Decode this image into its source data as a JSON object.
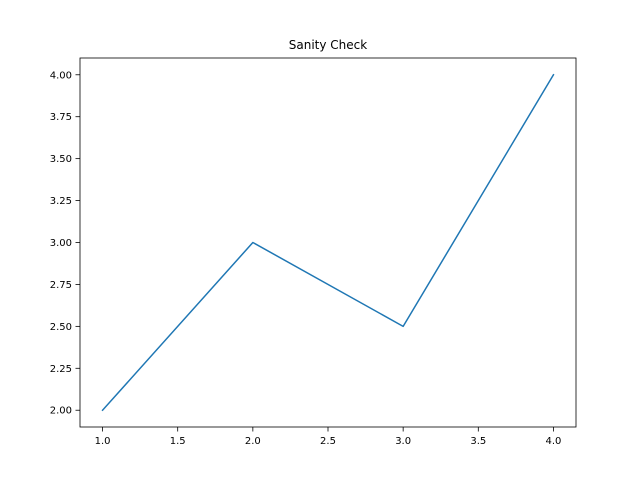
{
  "chart_data": {
    "type": "line",
    "title": "Sanity Check",
    "xlabel": "",
    "ylabel": "",
    "xlim": [
      0.85,
      4.15
    ],
    "ylim": [
      1.9,
      4.1
    ],
    "x_ticks": [
      1.0,
      1.5,
      2.0,
      2.5,
      3.0,
      3.5,
      4.0
    ],
    "y_ticks": [
      2.0,
      2.25,
      2.5,
      2.75,
      3.0,
      3.25,
      3.5,
      3.75,
      4.0
    ],
    "x_tick_labels": [
      "1.0",
      "1.5",
      "2.0",
      "2.5",
      "3.0",
      "3.5",
      "4.0"
    ],
    "y_tick_labels": [
      "2.00",
      "2.25",
      "2.50",
      "2.75",
      "3.00",
      "3.25",
      "3.50",
      "3.75",
      "4.00"
    ],
    "grid": false,
    "legend": "none",
    "series": [
      {
        "x": [
          1.0,
          2.0,
          3.0,
          4.0
        ],
        "values": [
          2.0,
          3.0,
          2.5,
          4.0
        ],
        "color": "#1f77b4"
      }
    ]
  }
}
